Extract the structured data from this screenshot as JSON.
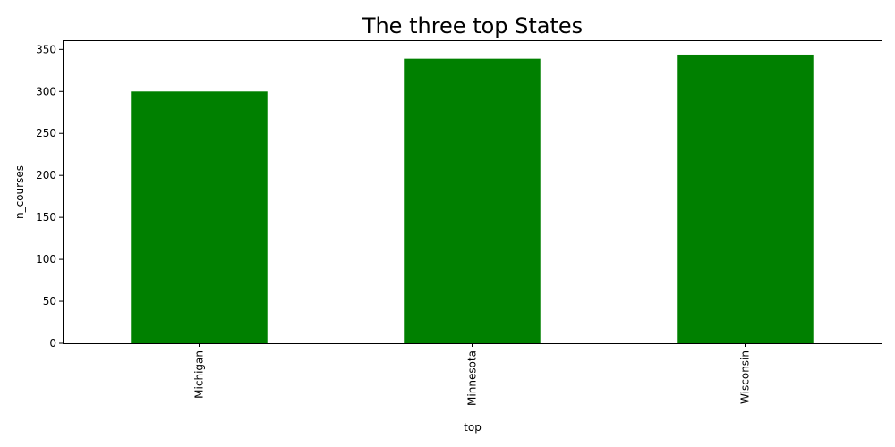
{
  "chart_data": {
    "type": "bar",
    "title": "The three top States",
    "xlabel": "top",
    "ylabel": "n_courses",
    "categories": [
      "Michigan",
      "Minnesota",
      "Wisconsin"
    ],
    "values": [
      300,
      339,
      344
    ],
    "ylim": [
      0,
      361
    ],
    "yticks": [
      0,
      50,
      100,
      150,
      200,
      250,
      300,
      350
    ],
    "bar_color": "#008000",
    "grid": false,
    "legend": false
  }
}
